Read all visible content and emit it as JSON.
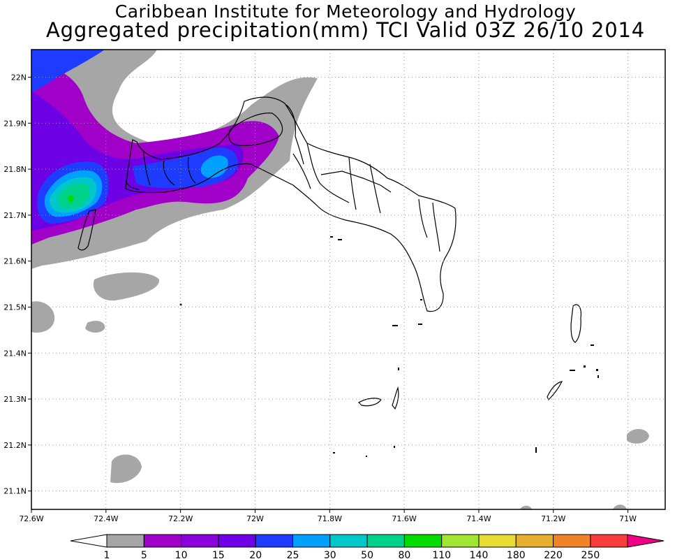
{
  "header": {
    "line1": "Caribbean Institute for Meteorology and Hydrology",
    "line2": "Aggregated precipitation(mm) TCI Valid 03Z 26/10 2014"
  },
  "map": {
    "lon_range": [
      -72.6,
      -70.9
    ],
    "lat_range": [
      21.06,
      22.06
    ],
    "lon_ticks": [
      {
        "v": -72.6,
        "label": "72.6W"
      },
      {
        "v": -72.4,
        "label": "72.4W"
      },
      {
        "v": -72.2,
        "label": "72.2W"
      },
      {
        "v": -72.0,
        "label": "72W"
      },
      {
        "v": -71.8,
        "label": "71.8W"
      },
      {
        "v": -71.6,
        "label": "71.6W"
      },
      {
        "v": -71.4,
        "label": "71.4W"
      },
      {
        "v": -71.2,
        "label": "71.2W"
      },
      {
        "v": -71.0,
        "label": "71W"
      }
    ],
    "lat_ticks": [
      {
        "v": 22.0,
        "label": "22N"
      },
      {
        "v": 21.9,
        "label": "21.9N"
      },
      {
        "v": 21.8,
        "label": "21.8N"
      },
      {
        "v": 21.7,
        "label": "21.7N"
      },
      {
        "v": 21.6,
        "label": "21.6N"
      },
      {
        "v": 21.5,
        "label": "21.5N"
      },
      {
        "v": 21.4,
        "label": "21.4N"
      },
      {
        "v": 21.3,
        "label": "21.3N"
      },
      {
        "v": 21.2,
        "label": "21.2N"
      },
      {
        "v": 21.1,
        "label": "21.1N"
      }
    ],
    "grid": true
  },
  "colorbar": {
    "labels": [
      "1",
      "5",
      "10",
      "15",
      "20",
      "25",
      "30",
      "50",
      "80",
      "110",
      "140",
      "180",
      "220",
      "250"
    ],
    "colors": [
      "#a6a6a6",
      "#a000c8",
      "#8c00dc",
      "#6e00e6",
      "#1e3cff",
      "#00a0ff",
      "#00c8c8",
      "#00d28c",
      "#00dc00",
      "#a0e632",
      "#e6dc32",
      "#e6af2d",
      "#f08228",
      "#fa3c3c",
      "#f00082"
    ]
  }
}
